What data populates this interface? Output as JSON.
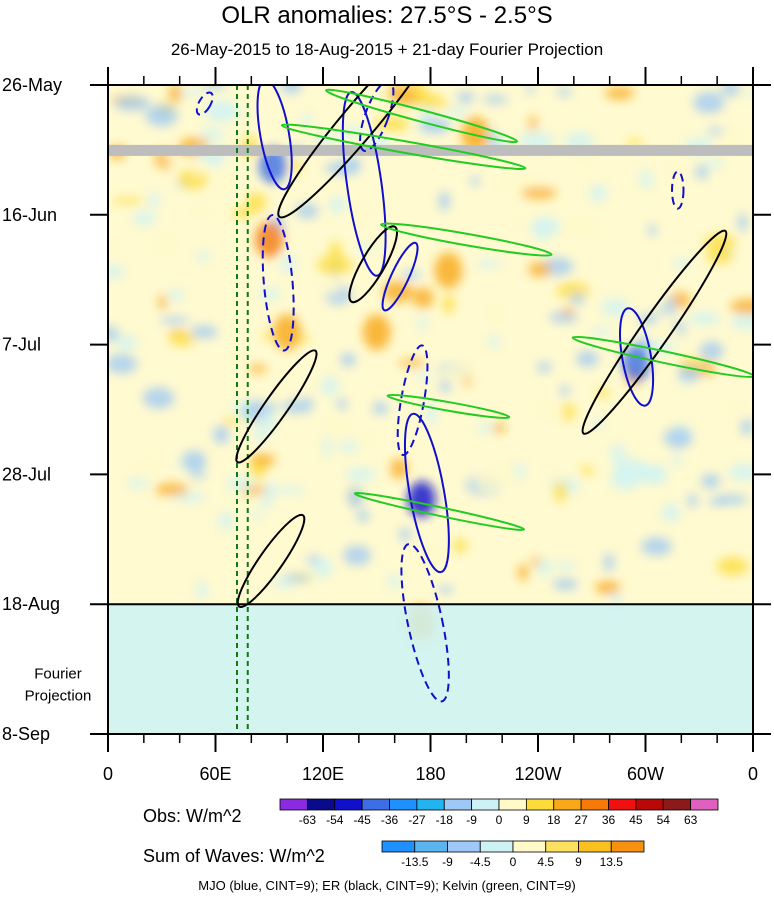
{
  "title": "OLR anomalies: 27.5°S - 2.5°S",
  "subtitle": "26-May-2015 to 18-Aug-2015 + 21-day Fourier Projection",
  "chart_data": {
    "type": "heatmap",
    "description_type": "Hovmoller (time-longitude) OLR anomaly with wave contours",
    "xaxis": {
      "ticks": [
        "0",
        "60E",
        "120E",
        "180",
        "120W",
        "60W",
        "0"
      ],
      "tick_values": [
        0,
        60,
        120,
        180,
        240,
        300,
        360
      ],
      "range": [
        0,
        360
      ]
    },
    "yaxis": {
      "ticks": [
        "26-May",
        "16-Jun",
        "7-Jul",
        "28-Jul",
        "18-Aug",
        "8-Sep"
      ],
      "tick_days": [
        0,
        21,
        42,
        63,
        84,
        105
      ],
      "range_days": [
        0,
        105
      ],
      "reversed": true
    },
    "projection_label": [
      "Fourier",
      "Projection"
    ],
    "observation_end_day": 84,
    "missing_data_band_day": 5,
    "green_dashed_longitudes": [
      72,
      78
    ],
    "obs_colorbar": {
      "label": "Obs: W/m^2",
      "levels": [
        "-63",
        "-54",
        "-45",
        "-36",
        "-27",
        "-18",
        "-9",
        "0",
        "9",
        "18",
        "27",
        "36",
        "45",
        "54",
        "63"
      ],
      "colors": [
        "#8a2be2",
        "#0a0a8c",
        "#1010cc",
        "#3c6ee6",
        "#1e90ff",
        "#22b4f0",
        "#9ec8f5",
        "#cdf2f5",
        "#fffac8",
        "#fddc3a",
        "#f8a818",
        "#f57a08",
        "#f01010",
        "#b80808",
        "#8c1a1a",
        "#e060c0"
      ]
    },
    "waves_colorbar": {
      "label": "Sum of Waves: W/m^2",
      "levels": [
        "-13.5",
        "-9",
        "-4.5",
        "0",
        "4.5",
        "9",
        "13.5"
      ],
      "colors": [
        "#1e90ff",
        "#5ab4f0",
        "#9ec8f5",
        "#cdf2f5",
        "#fffac8",
        "#fde060",
        "#fac020",
        "#f89010"
      ]
    },
    "contours": [
      {
        "name": "MJO",
        "color": "#1010cc",
        "shapes": [
          {
            "lon": 93,
            "day": 8,
            "rx": 5,
            "ry": 9,
            "rot": -10,
            "dashed": false
          },
          {
            "lon": 143,
            "day": 16,
            "rx": 6,
            "ry": 15,
            "rot": -8,
            "dashed": false
          },
          {
            "lon": 150,
            "day": 5,
            "rx": 4,
            "ry": 6,
            "rot": 20,
            "dashed": true
          },
          {
            "lon": 95,
            "day": 32,
            "rx": 5,
            "ry": 11,
            "rot": -5,
            "dashed": true
          },
          {
            "lon": 170,
            "day": 51,
            "rx": 4,
            "ry": 9,
            "rot": 10,
            "dashed": true
          },
          {
            "lon": 178,
            "day": 66,
            "rx": 6,
            "ry": 13,
            "rot": -10,
            "dashed": false
          },
          {
            "lon": 177,
            "day": 87,
            "rx": 6,
            "ry": 13,
            "rot": -12,
            "dashed": true
          },
          {
            "lon": 163,
            "day": 31,
            "rx": 3,
            "ry": 6,
            "rot": 25,
            "dashed": false
          },
          {
            "lon": 295,
            "day": 44,
            "rx": 5,
            "ry": 8,
            "rot": -10,
            "dashed": false
          },
          {
            "lon": 318,
            "day": 17,
            "rx": 2,
            "ry": 3,
            "rot": 0,
            "dashed": true
          },
          {
            "lon": 54,
            "day": 3,
            "rx": 2,
            "ry": 2,
            "rot": 30,
            "dashed": true
          }
        ]
      },
      {
        "name": "ER",
        "color": "#000000",
        "shapes": [
          {
            "lon": 140,
            "day": 6,
            "rx": 6,
            "ry": 20,
            "rot": 40,
            "dashed": false
          },
          {
            "lon": 94,
            "day": 52,
            "rx": 4,
            "ry": 11,
            "rot": 35,
            "dashed": false
          },
          {
            "lon": 91,
            "day": 77,
            "rx": 4,
            "ry": 9,
            "rot": 35,
            "dashed": false
          },
          {
            "lon": 148,
            "day": 29,
            "rx": 4,
            "ry": 7,
            "rot": 30,
            "dashed": false
          },
          {
            "lon": 305,
            "day": 40,
            "rx": 5,
            "ry": 20,
            "rot": 35,
            "dashed": false
          }
        ]
      },
      {
        "name": "Kelvin",
        "color": "#22cc22",
        "shapes": [
          {
            "lon": 165,
            "day": 10,
            "rx": 2,
            "ry": 20,
            "rot": -80,
            "dashed": false
          },
          {
            "lon": 200,
            "day": 25,
            "rx": 2,
            "ry": 14,
            "rot": -80,
            "dashed": false
          },
          {
            "lon": 175,
            "day": 5,
            "rx": 2,
            "ry": 16,
            "rot": -75,
            "dashed": false
          },
          {
            "lon": 310,
            "day": 44,
            "rx": 2,
            "ry": 15,
            "rot": -78,
            "dashed": false
          },
          {
            "lon": 185,
            "day": 69,
            "rx": 1.5,
            "ry": 14,
            "rot": -78,
            "dashed": false
          },
          {
            "lon": 190,
            "day": 52,
            "rx": 1.5,
            "ry": 10,
            "rot": -80,
            "dashed": false
          }
        ]
      }
    ]
  },
  "colorbar_obs_label": "Obs: W/m^2",
  "colorbar_waves_label": "Sum of Waves: W/m^2",
  "footer": "MJO (blue, CINT=9); ER (black, CINT=9); Kelvin (green, CINT=9)"
}
